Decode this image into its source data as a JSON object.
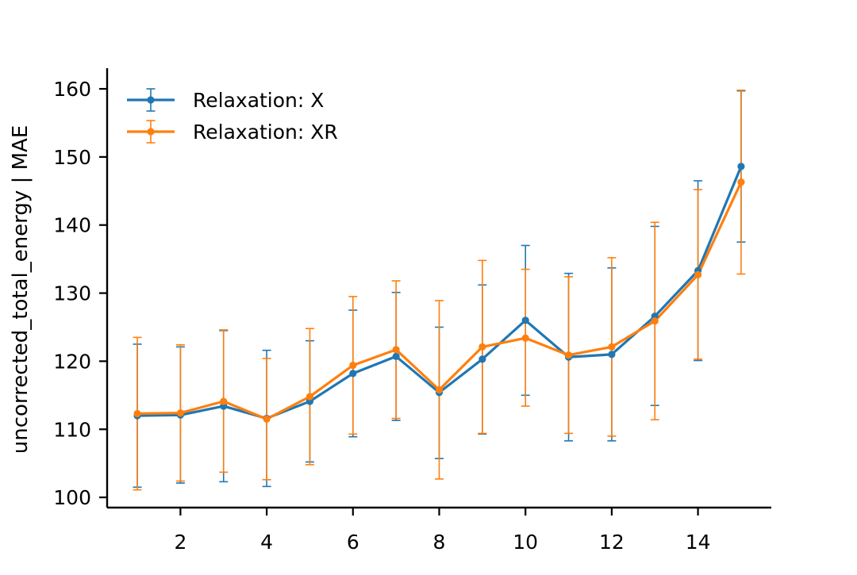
{
  "chart_data": {
    "type": "line",
    "title": "",
    "xlabel": "",
    "ylabel": "uncorrected_total_energy | MAE",
    "xlim": [
      0.3,
      15.7
    ],
    "ylim": [
      98.5,
      162.8
    ],
    "xticks": [
      2,
      4,
      6,
      8,
      10,
      12,
      14
    ],
    "yticks": [
      100,
      110,
      120,
      130,
      140,
      150,
      160
    ],
    "grid": false,
    "legend_position": "top-left",
    "x": [
      1,
      2,
      3,
      4,
      5,
      6,
      7,
      8,
      9,
      10,
      11,
      12,
      13,
      14,
      15
    ],
    "series": [
      {
        "name": "Relaxation: X",
        "color": "#1f77b4",
        "y": [
          112.0,
          112.1,
          113.4,
          111.6,
          114.1,
          118.2,
          120.7,
          115.4,
          120.3,
          126.0,
          120.6,
          121.0,
          126.6,
          133.3,
          148.6
        ],
        "lower": [
          101.5,
          102.1,
          102.3,
          101.6,
          105.2,
          108.9,
          111.3,
          105.7,
          109.3,
          115.0,
          108.3,
          108.3,
          113.5,
          120.1,
          137.5
        ],
        "upper": [
          122.5,
          122.1,
          124.5,
          121.6,
          123.0,
          127.5,
          130.1,
          125.0,
          131.2,
          137.0,
          132.9,
          133.7,
          139.8,
          146.5,
          159.7
        ]
      },
      {
        "name": "Relaxation: XR",
        "color": "#ff7f0e",
        "y": [
          112.3,
          112.4,
          114.1,
          111.5,
          114.8,
          119.4,
          121.7,
          115.8,
          122.1,
          123.4,
          120.9,
          122.1,
          125.9,
          132.7,
          146.3
        ],
        "lower": [
          101.1,
          102.4,
          103.7,
          102.6,
          104.8,
          109.3,
          111.6,
          102.7,
          109.4,
          113.4,
          109.4,
          109.0,
          111.4,
          120.3,
          132.8
        ],
        "upper": [
          123.5,
          122.4,
          124.6,
          120.4,
          124.8,
          129.5,
          131.8,
          128.9,
          134.8,
          133.5,
          132.4,
          135.2,
          140.4,
          145.2,
          159.8
        ]
      }
    ]
  }
}
